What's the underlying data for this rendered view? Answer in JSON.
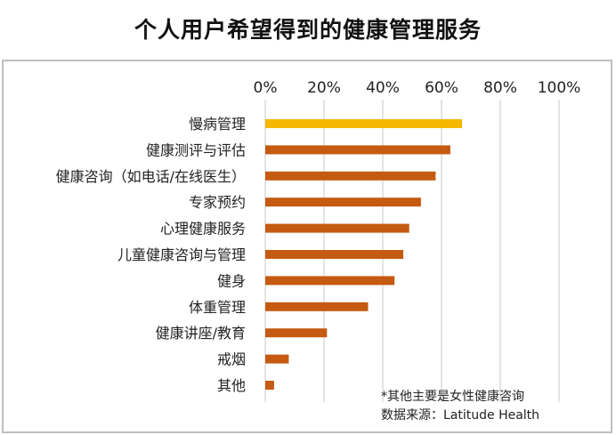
{
  "chart_data": {
    "type": "bar",
    "orientation": "horizontal",
    "title": "个人用户希望得到的健康管理服务",
    "categories": [
      "慢病管理",
      "健康测评与评估",
      "健康咨询（如电话/在线医生）",
      "专家预约",
      "心理健康服务",
      "儿童健康咨询与管理",
      "健身",
      "体重管理",
      "健康讲座/教育",
      "戒烟",
      "其他"
    ],
    "values": [
      67,
      63,
      58,
      53,
      49,
      47,
      44,
      35,
      21,
      8,
      3
    ],
    "unit": "%",
    "xlim": [
      0,
      100
    ],
    "x_ticks": [
      "0%",
      "20%",
      "40%",
      "60%",
      "80%",
      "100%"
    ],
    "x_tick_values": [
      0,
      20,
      40,
      60,
      80,
      100
    ],
    "x_axis_position": "top",
    "grid": true,
    "bar_colors": [
      "#f5b800",
      "#c55a11",
      "#c55a11",
      "#c55a11",
      "#c55a11",
      "#c55a11",
      "#c55a11",
      "#c55a11",
      "#c55a11",
      "#c55a11",
      "#c55a11"
    ],
    "annotations": [
      "*其他主要是女性健康咨询",
      "数据来源：Latitude Health"
    ]
  },
  "colors": {
    "highlight": "#f5b800",
    "bar": "#c55a11",
    "grid": "#c9c9c9",
    "frame": "#bfbfbf"
  }
}
